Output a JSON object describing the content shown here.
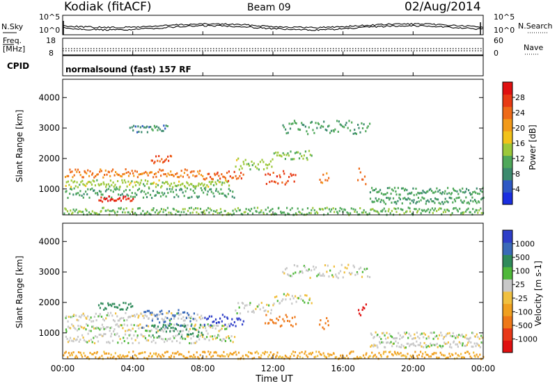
{
  "header": {
    "station": "Kodiak (fitACF)",
    "beam": "Beam 09",
    "date": "02/Aug/2014"
  },
  "noise_panel": {
    "left_label": "N.Sky",
    "right_label": "N.Search",
    "left_ticks": [
      "10^5",
      "10^0"
    ],
    "right_ticks": [
      "10^5",
      "10^0"
    ]
  },
  "freq_panel": {
    "left_label_line1": "Freq.",
    "left_label_line2": "[MHz]",
    "left_ticks": [
      "18",
      "8"
    ],
    "right_label": "Nave",
    "right_ticks": [
      "60",
      "0"
    ]
  },
  "cpid_panel": {
    "label": "CPID",
    "program": "normalsound (fast) 157 RF"
  },
  "x_axis": {
    "ticks": [
      "00:00",
      "04:00",
      "08:00",
      "12:00",
      "16:00",
      "20:00",
      "00:00"
    ],
    "label": "Time UT"
  },
  "colors": {
    "power": [
      "#1a2ee0",
      "#2e58c4",
      "#3c8a6e",
      "#4fa85a",
      "#9cc83a",
      "#f2c21a",
      "#f29a1a",
      "#ee6a18",
      "#e83a14",
      "#e01010"
    ],
    "velocity": [
      "#2e3ec8",
      "#3a6ab8",
      "#2f8a5a",
      "#4fb83a",
      "#c8c8c8",
      "#f0c040",
      "#f0a020",
      "#ee7818",
      "#e83818",
      "#e01010"
    ],
    "trace": "#000000"
  },
  "chart_data": [
    {
      "type": "heatmap",
      "title": "",
      "xlabel": "",
      "ylabel": "Slant Range [km]",
      "y_ticks": [
        "1000",
        "2000",
        "3000",
        "4000"
      ],
      "ylim": [
        150,
        4600
      ],
      "xlim_hours": [
        0,
        24
      ],
      "colorbar_label": "Power [dB]",
      "colorbar_ticks": [
        "4",
        "8",
        "12",
        "16",
        "20",
        "24",
        "28"
      ],
      "features": [
        {
          "t0": 0.1,
          "t1": 8.0,
          "r": 1550,
          "dr": 140,
          "level": 20
        },
        {
          "t0": 0.1,
          "t1": 9.5,
          "r": 1200,
          "dr": 120,
          "level": 12
        },
        {
          "t0": 0.1,
          "t1": 9.8,
          "r": 900,
          "dr": 160,
          "level": 8
        },
        {
          "t0": 8.0,
          "t1": 10.3,
          "r": 1450,
          "dr": 160,
          "level": 22
        },
        {
          "t0": 9.8,
          "t1": 12.0,
          "r": 1850,
          "dr": 180,
          "level": 12
        },
        {
          "t0": 12.0,
          "t1": 14.2,
          "r": 2150,
          "dr": 160,
          "level": 10
        },
        {
          "t0": 11.5,
          "t1": 13.3,
          "r": 1400,
          "dr": 220,
          "level": 24
        },
        {
          "t0": 14.6,
          "t1": 15.2,
          "r": 1350,
          "dr": 200,
          "level": 20
        },
        {
          "t0": 16.8,
          "t1": 17.3,
          "r": 1450,
          "dr": 320,
          "level": 22
        },
        {
          "t0": 2.0,
          "t1": 4.0,
          "r": 700,
          "dr": 90,
          "level": 26
        },
        {
          "t0": 5.0,
          "t1": 6.2,
          "r": 2000,
          "dr": 120,
          "level": 22
        },
        {
          "t0": 17.5,
          "t1": 24.0,
          "r": 950,
          "dr": 120,
          "level": 8
        },
        {
          "t0": 17.5,
          "t1": 24.0,
          "r": 650,
          "dr": 110,
          "level": 8
        },
        {
          "t0": 12.5,
          "t1": 17.5,
          "r": 3050,
          "dr": 220,
          "level": 8
        },
        {
          "t0": 3.8,
          "t1": 6.0,
          "r": 3000,
          "dr": 120,
          "level": 6
        },
        {
          "t0": 0.0,
          "t1": 24.0,
          "r": 300,
          "dr": 120,
          "level": 10
        }
      ]
    },
    {
      "type": "heatmap",
      "title": "",
      "xlabel": "Time UT",
      "ylabel": "Slant Range [km]",
      "y_ticks": [
        "1000",
        "2000",
        "3000",
        "4000"
      ],
      "ylim": [
        150,
        4600
      ],
      "xlim_hours": [
        0,
        24
      ],
      "colorbar_label": "Velocity [m s-1]",
      "colorbar_ticks": [
        "1000",
        "500",
        "100",
        "25",
        "-25",
        "-100",
        "-500",
        "-1000"
      ],
      "features": [
        {
          "t0": 0.1,
          "t1": 8.0,
          "r": 1550,
          "dr": 140,
          "velocity": 0
        },
        {
          "t0": 0.1,
          "t1": 9.5,
          "r": 1200,
          "dr": 120,
          "velocity": 0
        },
        {
          "t0": 0.1,
          "t1": 9.8,
          "r": 850,
          "dr": 160,
          "velocity": 0
        },
        {
          "t0": 4.5,
          "t1": 7.5,
          "r": 1500,
          "dr": 300,
          "velocity": 600
        },
        {
          "t0": 5.0,
          "t1": 8.0,
          "r": 1100,
          "dr": 200,
          "velocity": 200
        },
        {
          "t0": 2.0,
          "t1": 4.0,
          "r": 1900,
          "dr": 120,
          "velocity": 150
        },
        {
          "t0": 8.0,
          "t1": 10.3,
          "r": 1450,
          "dr": 200,
          "velocity": 800
        },
        {
          "t0": 9.8,
          "t1": 12.0,
          "r": 1850,
          "dr": 180,
          "velocity": 0
        },
        {
          "t0": 12.0,
          "t1": 14.2,
          "r": 2150,
          "dr": 160,
          "velocity": 0
        },
        {
          "t0": 11.5,
          "t1": 13.3,
          "r": 1400,
          "dr": 220,
          "velocity": -300
        },
        {
          "t0": 14.6,
          "t1": 15.2,
          "r": 1350,
          "dr": 200,
          "velocity": -300
        },
        {
          "t0": 16.8,
          "t1": 17.3,
          "r": 1600,
          "dr": 380,
          "velocity": -900
        },
        {
          "t0": 17.5,
          "t1": 24.0,
          "r": 950,
          "dr": 120,
          "velocity": 0
        },
        {
          "t0": 17.5,
          "t1": 24.0,
          "r": 650,
          "dr": 110,
          "velocity": 0
        },
        {
          "t0": 12.5,
          "t1": 17.5,
          "r": 3050,
          "dr": 220,
          "velocity": 0
        },
        {
          "t0": 0.0,
          "t1": 24.0,
          "r": 300,
          "dr": 120,
          "velocity": -100
        }
      ]
    }
  ]
}
